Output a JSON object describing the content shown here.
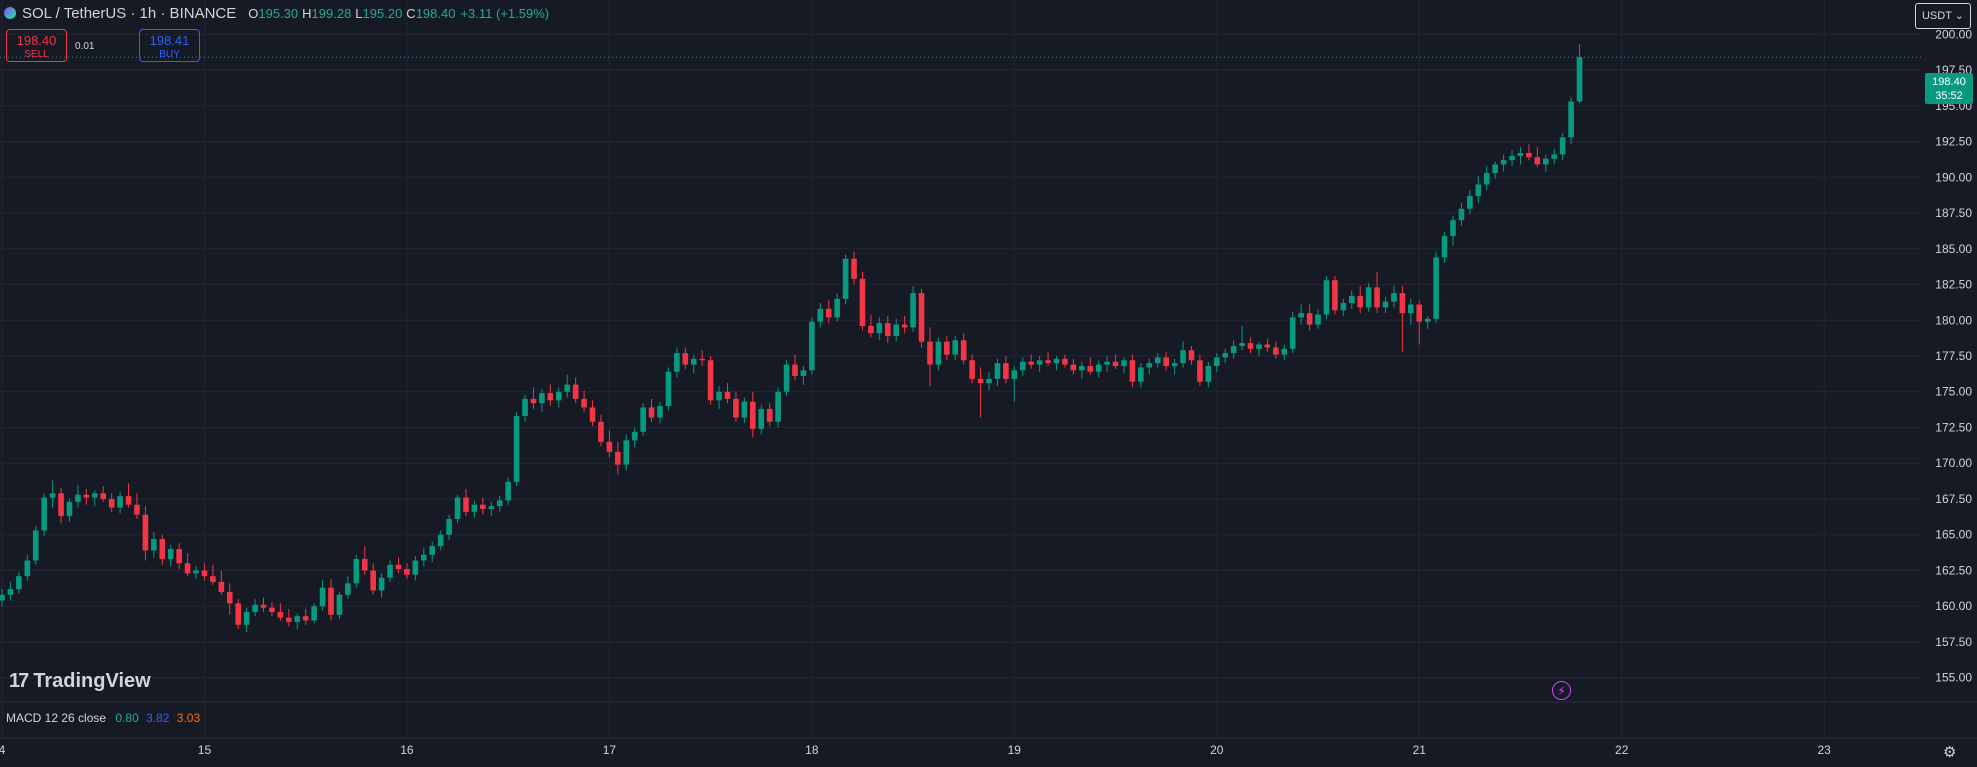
{
  "header": {
    "symbol": "SOL / TetherUS · 1h · BINANCE",
    "open_label": "O",
    "open": "195.30",
    "high_label": "H",
    "high": "199.28",
    "low_label": "L",
    "low": "195.20",
    "close_label": "C",
    "close": "198.40",
    "change": "+3.11 (+1.59%)"
  },
  "trade": {
    "sell_price": "198.40",
    "sell_label": "SELL",
    "spread": "0.01",
    "buy_price": "198.41",
    "buy_label": "BUY"
  },
  "currency": "USDT",
  "last_price_tag": {
    "price": "198.40",
    "countdown": "35:52"
  },
  "logo_text": "TradingView",
  "macd": {
    "label": "MACD 12 26 close",
    "v0": "0.80",
    "v1": "3.82",
    "v2": "3.03"
  },
  "colors": {
    "up": "#089981",
    "down": "#f23645",
    "background": "#161a25",
    "grid": "#232632"
  },
  "chart_data": {
    "type": "candlestick",
    "title": "SOL / TetherUS · 1h · BINANCE",
    "ylim": [
      153.3,
      202.4
    ],
    "y_ticks": [
      "155.00",
      "157.50",
      "160.00",
      "162.50",
      "165.00",
      "167.50",
      "170.00",
      "172.50",
      "175.00",
      "177.50",
      "180.00",
      "182.50",
      "185.00",
      "187.50",
      "190.00",
      "192.50",
      "195.00",
      "197.50",
      "200.00"
    ],
    "x_ticks": [
      {
        "label": "4",
        "index": 0
      },
      {
        "label": "15",
        "index": 24
      },
      {
        "label": "16",
        "index": 48
      },
      {
        "label": "17",
        "index": 72
      },
      {
        "label": "18",
        "index": 96
      },
      {
        "label": "19",
        "index": 120
      },
      {
        "label": "20",
        "index": 144
      },
      {
        "label": "21",
        "index": 168
      },
      {
        "label": "22",
        "index": 192
      },
      {
        "label": "23",
        "index": 216
      }
    ],
    "last_price": 198.4,
    "candles": [
      [
        160.4,
        161.2,
        160.0,
        160.8
      ],
      [
        160.8,
        161.7,
        160.4,
        161.2
      ],
      [
        161.2,
        162.4,
        160.9,
        162.1
      ],
      [
        162.1,
        163.6,
        161.8,
        163.2
      ],
      [
        163.2,
        165.6,
        162.9,
        165.3
      ],
      [
        165.3,
        167.9,
        164.9,
        167.6
      ],
      [
        167.6,
        168.8,
        166.9,
        167.9
      ],
      [
        167.9,
        168.3,
        165.8,
        166.3
      ],
      [
        166.3,
        167.5,
        165.9,
        167.3
      ],
      [
        167.3,
        168.5,
        166.9,
        167.8
      ],
      [
        167.8,
        168.2,
        167.1,
        167.6
      ],
      [
        167.6,
        168.1,
        167.0,
        167.9
      ],
      [
        167.9,
        168.4,
        167.3,
        167.5
      ],
      [
        167.5,
        167.9,
        166.6,
        166.9
      ],
      [
        166.9,
        168.0,
        166.5,
        167.7
      ],
      [
        167.7,
        168.6,
        166.9,
        167.1
      ],
      [
        167.1,
        167.9,
        166.1,
        166.4
      ],
      [
        166.4,
        167.0,
        163.2,
        163.9
      ],
      [
        163.9,
        165.2,
        163.4,
        164.7
      ],
      [
        164.7,
        165.0,
        162.9,
        163.3
      ],
      [
        163.3,
        164.3,
        162.8,
        164.0
      ],
      [
        164.0,
        164.4,
        162.6,
        163.0
      ],
      [
        163.0,
        163.7,
        162.1,
        162.3
      ],
      [
        162.3,
        162.8,
        161.9,
        162.5
      ],
      [
        162.5,
        163.0,
        161.8,
        162.1
      ],
      [
        162.1,
        162.9,
        161.5,
        161.7
      ],
      [
        161.7,
        162.5,
        160.8,
        161.0
      ],
      [
        161.0,
        161.6,
        159.4,
        160.2
      ],
      [
        160.2,
        160.5,
        158.4,
        158.7
      ],
      [
        158.7,
        159.9,
        158.2,
        159.6
      ],
      [
        159.6,
        160.5,
        159.3,
        160.1
      ],
      [
        160.1,
        160.6,
        159.6,
        159.9
      ],
      [
        159.9,
        160.3,
        159.3,
        159.6
      ],
      [
        159.6,
        160.2,
        159.0,
        159.2
      ],
      [
        159.2,
        159.8,
        158.6,
        158.9
      ],
      [
        158.9,
        159.5,
        158.4,
        159.3
      ],
      [
        159.3,
        159.8,
        158.7,
        159.0
      ],
      [
        159.0,
        160.2,
        158.8,
        160.0
      ],
      [
        160.0,
        161.8,
        159.7,
        161.3
      ],
      [
        161.3,
        161.9,
        159.0,
        159.4
      ],
      [
        159.4,
        161.0,
        159.1,
        160.8
      ],
      [
        160.8,
        162.1,
        160.5,
        161.6
      ],
      [
        161.6,
        163.6,
        161.3,
        163.3
      ],
      [
        163.3,
        164.2,
        162.2,
        162.5
      ],
      [
        162.5,
        163.0,
        160.8,
        161.1
      ],
      [
        161.1,
        162.3,
        160.6,
        162.0
      ],
      [
        162.0,
        163.2,
        161.7,
        162.9
      ],
      [
        162.9,
        163.4,
        162.3,
        162.6
      ],
      [
        162.6,
        163.0,
        161.9,
        162.2
      ],
      [
        162.2,
        163.5,
        161.8,
        163.2
      ],
      [
        163.2,
        164.1,
        162.8,
        163.6
      ],
      [
        163.6,
        164.5,
        163.1,
        164.2
      ],
      [
        164.2,
        165.3,
        163.9,
        165.0
      ],
      [
        165.0,
        166.4,
        164.6,
        166.1
      ],
      [
        166.1,
        167.8,
        165.8,
        167.6
      ],
      [
        167.6,
        168.2,
        166.3,
        166.6
      ],
      [
        166.6,
        167.4,
        166.2,
        167.1
      ],
      [
        167.1,
        167.6,
        166.4,
        166.8
      ],
      [
        166.8,
        167.3,
        166.3,
        167.0
      ],
      [
        167.0,
        167.7,
        166.6,
        167.4
      ],
      [
        167.4,
        169.0,
        167.1,
        168.7
      ],
      [
        168.7,
        173.6,
        168.4,
        173.3
      ],
      [
        173.3,
        174.8,
        172.9,
        174.5
      ],
      [
        174.5,
        175.3,
        173.8,
        174.2
      ],
      [
        174.2,
        175.2,
        173.6,
        174.9
      ],
      [
        174.9,
        175.5,
        174.0,
        174.4
      ],
      [
        174.4,
        175.3,
        173.9,
        175.0
      ],
      [
        175.0,
        176.2,
        174.6,
        175.5
      ],
      [
        175.5,
        176.0,
        174.2,
        174.5
      ],
      [
        174.5,
        175.1,
        173.6,
        173.9
      ],
      [
        173.9,
        174.4,
        172.6,
        172.9
      ],
      [
        172.9,
        173.4,
        171.2,
        171.5
      ],
      [
        171.5,
        172.3,
        170.4,
        170.8
      ],
      [
        170.8,
        171.5,
        169.2,
        169.9
      ],
      [
        169.9,
        172.0,
        169.5,
        171.6
      ],
      [
        171.6,
        172.5,
        171.1,
        172.2
      ],
      [
        172.2,
        174.2,
        171.9,
        173.9
      ],
      [
        173.9,
        174.5,
        172.9,
        173.2
      ],
      [
        173.2,
        174.3,
        172.8,
        174.0
      ],
      [
        174.0,
        176.7,
        173.7,
        176.4
      ],
      [
        176.4,
        178.1,
        176.0,
        177.7
      ],
      [
        177.7,
        178.1,
        176.6,
        176.9
      ],
      [
        176.9,
        177.6,
        176.3,
        177.3
      ],
      [
        177.3,
        177.9,
        176.8,
        177.2
      ],
      [
        177.2,
        177.5,
        174.1,
        174.4
      ],
      [
        174.4,
        175.4,
        173.8,
        175.0
      ],
      [
        175.0,
        175.6,
        174.2,
        174.5
      ],
      [
        174.5,
        175.0,
        172.9,
        173.2
      ],
      [
        173.2,
        174.6,
        172.8,
        174.3
      ],
      [
        174.3,
        175.0,
        171.8,
        172.4
      ],
      [
        172.4,
        174.1,
        172.0,
        173.8
      ],
      [
        173.8,
        174.2,
        172.6,
        172.9
      ],
      [
        172.9,
        175.3,
        172.5,
        175.0
      ],
      [
        175.0,
        177.2,
        174.7,
        176.9
      ],
      [
        176.9,
        177.6,
        175.8,
        176.1
      ],
      [
        176.1,
        176.8,
        175.5,
        176.5
      ],
      [
        176.5,
        180.2,
        176.2,
        179.9
      ],
      [
        179.9,
        181.2,
        179.5,
        180.8
      ],
      [
        180.8,
        181.4,
        179.8,
        180.2
      ],
      [
        180.2,
        181.9,
        179.9,
        181.5
      ],
      [
        181.5,
        184.6,
        181.1,
        184.3
      ],
      [
        184.3,
        184.8,
        182.5,
        182.9
      ],
      [
        182.9,
        183.4,
        179.3,
        179.6
      ],
      [
        179.6,
        180.4,
        178.8,
        179.1
      ],
      [
        179.1,
        180.2,
        178.6,
        179.8
      ],
      [
        179.8,
        180.3,
        178.4,
        178.9
      ],
      [
        178.9,
        180.1,
        178.5,
        179.7
      ],
      [
        179.7,
        180.3,
        179.1,
        179.5
      ],
      [
        179.5,
        182.4,
        179.2,
        181.9
      ],
      [
        181.9,
        182.2,
        178.1,
        178.5
      ],
      [
        178.5,
        179.5,
        175.4,
        176.9
      ],
      [
        176.9,
        178.8,
        176.5,
        178.5
      ],
      [
        178.5,
        178.9,
        177.2,
        177.6
      ],
      [
        177.6,
        178.9,
        177.2,
        178.6
      ],
      [
        178.6,
        179.1,
        176.9,
        177.2
      ],
      [
        177.2,
        177.6,
        175.6,
        175.9
      ],
      [
        175.9,
        176.7,
        173.2,
        175.6
      ],
      [
        175.6,
        176.4,
        175.1,
        175.9
      ],
      [
        175.9,
        177.3,
        175.4,
        177.0
      ],
      [
        177.0,
        177.5,
        175.6,
        175.9
      ],
      [
        175.9,
        176.8,
        174.3,
        176.5
      ],
      [
        176.5,
        177.4,
        176.1,
        177.1
      ],
      [
        177.1,
        177.6,
        176.6,
        176.9
      ],
      [
        176.9,
        177.5,
        176.4,
        177.2
      ],
      [
        177.2,
        177.8,
        176.8,
        177.0
      ],
      [
        177.0,
        177.5,
        176.5,
        177.3
      ],
      [
        177.3,
        177.6,
        176.7,
        176.9
      ],
      [
        176.9,
        177.3,
        176.2,
        176.5
      ],
      [
        176.5,
        177.1,
        175.9,
        176.8
      ],
      [
        176.8,
        177.4,
        176.2,
        176.4
      ],
      [
        176.4,
        177.2,
        176.0,
        176.9
      ],
      [
        176.9,
        177.5,
        176.4,
        177.1
      ],
      [
        177.1,
        177.6,
        176.6,
        176.8
      ],
      [
        176.8,
        177.4,
        176.3,
        177.2
      ],
      [
        177.2,
        177.6,
        175.3,
        175.7
      ],
      [
        175.7,
        177.0,
        175.3,
        176.7
      ],
      [
        176.7,
        177.3,
        176.2,
        177.0
      ],
      [
        177.0,
        177.7,
        176.7,
        177.4
      ],
      [
        177.4,
        177.8,
        176.5,
        176.8
      ],
      [
        176.8,
        177.3,
        176.2,
        177.0
      ],
      [
        177.0,
        178.5,
        176.7,
        177.9
      ],
      [
        177.9,
        178.2,
        176.9,
        177.2
      ],
      [
        177.2,
        177.6,
        175.4,
        175.7
      ],
      [
        175.7,
        177.1,
        175.3,
        176.8
      ],
      [
        176.8,
        177.7,
        176.4,
        177.4
      ],
      [
        177.4,
        178.0,
        177.0,
        177.7
      ],
      [
        177.7,
        178.6,
        177.3,
        178.2
      ],
      [
        178.2,
        179.6,
        177.9,
        178.4
      ],
      [
        178.4,
        178.8,
        177.7,
        178.0
      ],
      [
        178.0,
        178.5,
        177.5,
        178.3
      ],
      [
        178.3,
        178.7,
        177.8,
        178.1
      ],
      [
        178.1,
        178.5,
        177.3,
        177.6
      ],
      [
        177.6,
        178.3,
        177.2,
        178.0
      ],
      [
        178.0,
        180.6,
        177.7,
        180.2
      ],
      [
        180.2,
        181.1,
        179.7,
        180.5
      ],
      [
        180.5,
        181.1,
        179.3,
        179.7
      ],
      [
        179.7,
        180.8,
        179.4,
        180.4
      ],
      [
        180.4,
        183.1,
        180.1,
        182.8
      ],
      [
        182.8,
        183.1,
        180.4,
        180.7
      ],
      [
        180.7,
        181.5,
        180.3,
        181.2
      ],
      [
        181.2,
        182.1,
        180.8,
        181.7
      ],
      [
        181.7,
        182.4,
        180.5,
        180.9
      ],
      [
        180.9,
        182.6,
        180.6,
        182.3
      ],
      [
        182.3,
        183.4,
        180.5,
        180.9
      ],
      [
        180.9,
        181.6,
        180.5,
        181.3
      ],
      [
        181.3,
        182.4,
        180.9,
        181.9
      ],
      [
        181.9,
        182.4,
        177.8,
        180.5
      ],
      [
        180.5,
        181.5,
        179.7,
        181.1
      ],
      [
        181.1,
        181.4,
        178.3,
        179.9
      ],
      [
        179.9,
        180.3,
        179.4,
        180.1
      ],
      [
        180.1,
        184.8,
        179.8,
        184.4
      ],
      [
        184.4,
        186.2,
        184.0,
        185.9
      ],
      [
        185.9,
        187.3,
        185.2,
        187.0
      ],
      [
        187.0,
        188.2,
        186.6,
        187.8
      ],
      [
        187.8,
        189.1,
        187.4,
        188.7
      ],
      [
        188.7,
        190.1,
        188.2,
        189.5
      ],
      [
        189.5,
        190.8,
        189.1,
        190.3
      ],
      [
        190.3,
        191.1,
        189.9,
        190.9
      ],
      [
        190.9,
        191.6,
        190.4,
        191.2
      ],
      [
        191.2,
        191.9,
        190.8,
        191.5
      ],
      [
        191.5,
        192.1,
        190.9,
        191.7
      ],
      [
        191.7,
        192.3,
        191.2,
        191.4
      ],
      [
        191.4,
        192.1,
        190.7,
        190.9
      ],
      [
        190.9,
        191.6,
        190.4,
        191.3
      ],
      [
        191.3,
        192.0,
        190.9,
        191.6
      ],
      [
        191.6,
        193.1,
        191.2,
        192.8
      ],
      [
        192.8,
        195.6,
        192.3,
        195.3
      ],
      [
        195.3,
        199.3,
        195.2,
        198.4
      ]
    ]
  }
}
